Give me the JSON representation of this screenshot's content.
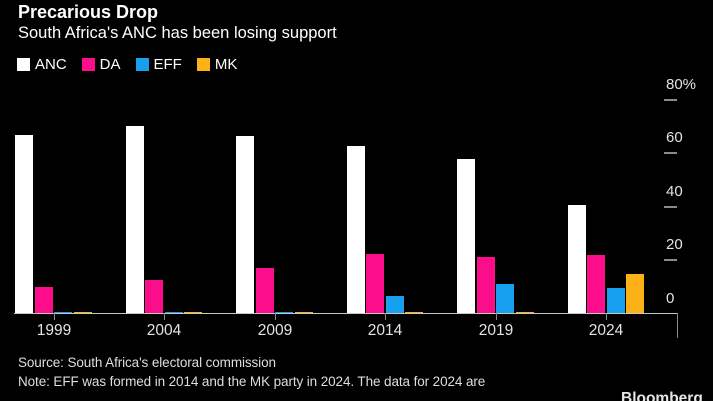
{
  "header": {
    "title": "Precarious Drop",
    "subtitle": "South Africa's ANC has been losing support"
  },
  "legend": [
    {
      "label": "ANC",
      "color": "#ffffff"
    },
    {
      "label": "DA",
      "color": "#fc0d8c"
    },
    {
      "label": "EFF",
      "color": "#18a0f0"
    },
    {
      "label": "MK",
      "color": "#fcb216"
    }
  ],
  "chart_data": {
    "type": "bar",
    "title": "Precarious Drop",
    "subtitle": "South Africa's ANC has been losing support",
    "categories": [
      "1999",
      "2004",
      "2009",
      "2014",
      "2019",
      "2024"
    ],
    "series": [
      {
        "name": "ANC",
        "color": "#ffffff",
        "values": [
          66.4,
          69.7,
          65.9,
          62.2,
          57.5,
          40.2
        ]
      },
      {
        "name": "DA",
        "color": "#fc0d8c",
        "values": [
          9.6,
          12.4,
          16.7,
          22.2,
          20.8,
          21.8
        ]
      },
      {
        "name": "EFF",
        "color": "#18a0f0",
        "values": [
          0,
          0,
          0,
          6.4,
          10.8,
          9.5
        ]
      },
      {
        "name": "MK",
        "color": "#fcb216",
        "values": [
          0,
          0,
          0,
          0,
          0,
          14.6
        ]
      }
    ],
    "xlabel": "",
    "ylabel": "",
    "ylim": [
      0,
      80
    ],
    "yticks": [
      0,
      20,
      40,
      60,
      80
    ],
    "ytick_labels": [
      "0",
      "20",
      "40",
      "60",
      "80%"
    ],
    "unit": "%",
    "grid": false,
    "legend_position": "top-left",
    "axis_side": "right",
    "background_color": "#000000"
  },
  "footer": {
    "source": "Source: South Africa's electoral commission",
    "note": "Note: EFF was formed in 2014 and the MK party in 2024. The data for 2024 are",
    "brand": "Bloomberg"
  },
  "colors": {
    "background": "#000000",
    "axis_line": "#c8c8c8",
    "tick": "#8a8a8a",
    "tick_label": "#e3e3e3",
    "text": "#ffffff"
  }
}
